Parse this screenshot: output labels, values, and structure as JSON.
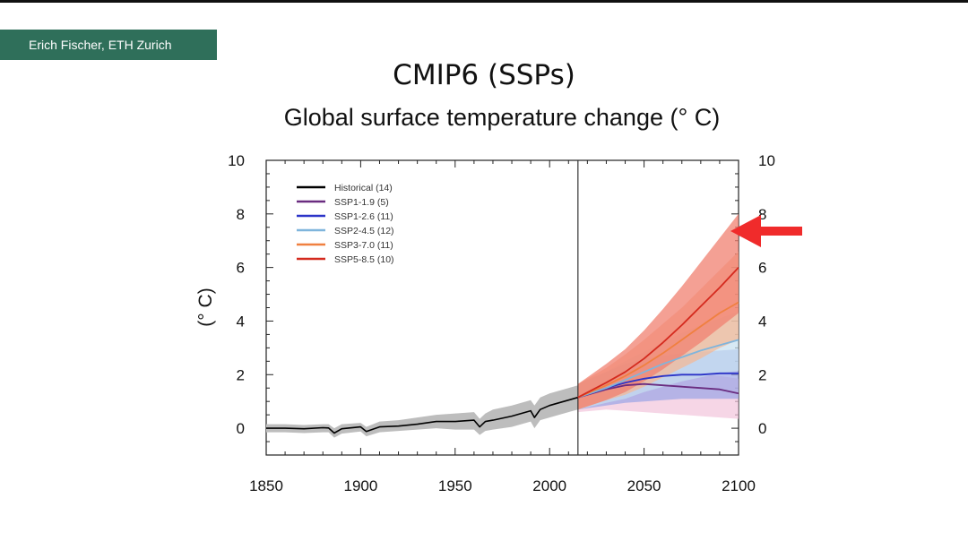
{
  "credit": "Erich Fischer, ETH Zurich",
  "title": "CMIP6 (SSPs)",
  "chart_data": {
    "type": "line",
    "title": "Global surface temperature change (° C)",
    "ylabel": "(° C)",
    "xlabel": "",
    "xlim": [
      1850,
      2100
    ],
    "ylim": [
      -1,
      10
    ],
    "x_ticks": [
      "1850",
      "1900",
      "1950",
      "2000",
      "2050",
      "2100"
    ],
    "y_ticks": [
      "0",
      "2",
      "4",
      "6",
      "8",
      "10"
    ],
    "divider_year": 2015,
    "legend_position": "top-left",
    "series": [
      {
        "name": "Historical (14)",
        "color": "#000000",
        "band": "#bdbdbd",
        "x": [
          1850,
          1860,
          1870,
          1880,
          1883,
          1886,
          1890,
          1900,
          1903,
          1910,
          1920,
          1930,
          1940,
          1950,
          1960,
          1963,
          1966,
          1970,
          1980,
          1990,
          1992,
          1995,
          2000,
          2005,
          2010,
          2015
        ],
        "y": [
          0.0,
          0.0,
          -0.02,
          0.02,
          0.01,
          -0.18,
          -0.02,
          0.05,
          -0.12,
          0.05,
          0.08,
          0.15,
          0.25,
          0.25,
          0.3,
          0.05,
          0.25,
          0.3,
          0.45,
          0.65,
          0.4,
          0.7,
          0.85,
          0.95,
          1.05,
          1.15
        ],
        "lo": [
          -0.15,
          -0.15,
          -0.18,
          -0.15,
          -0.15,
          -0.35,
          -0.2,
          -0.12,
          -0.3,
          -0.15,
          -0.1,
          -0.05,
          0.0,
          -0.05,
          -0.05,
          -0.25,
          -0.1,
          -0.05,
          0.05,
          0.25,
          0.0,
          0.3,
          0.4,
          0.5,
          0.6,
          0.7
        ],
        "hi": [
          0.15,
          0.15,
          0.12,
          0.15,
          0.15,
          0.0,
          0.15,
          0.2,
          0.05,
          0.25,
          0.3,
          0.4,
          0.5,
          0.55,
          0.6,
          0.35,
          0.55,
          0.7,
          0.85,
          1.05,
          0.85,
          1.15,
          1.3,
          1.4,
          1.5,
          1.6
        ]
      },
      {
        "name": "SSP1-1.9 (5)",
        "color": "#6a2c80",
        "band": "#f2c4dc",
        "x": [
          2015,
          2030,
          2040,
          2050,
          2060,
          2070,
          2080,
          2090,
          2100
        ],
        "y": [
          1.15,
          1.45,
          1.6,
          1.65,
          1.6,
          1.55,
          1.5,
          1.45,
          1.3
        ],
        "lo": [
          0.6,
          0.7,
          0.65,
          0.6,
          0.55,
          0.5,
          0.45,
          0.4,
          0.35
        ],
        "hi": [
          1.6,
          1.9,
          2.1,
          2.2,
          2.2,
          2.1,
          2.0,
          1.95,
          1.85
        ]
      },
      {
        "name": "SSP1-2.6 (11)",
        "color": "#2c34c8",
        "band": "#9aa4e6",
        "x": [
          2015,
          2030,
          2040,
          2050,
          2060,
          2070,
          2080,
          2090,
          2100
        ],
        "y": [
          1.15,
          1.5,
          1.7,
          1.85,
          1.95,
          2.0,
          2.0,
          2.05,
          2.05
        ],
        "lo": [
          0.7,
          0.85,
          0.95,
          1.0,
          1.05,
          1.1,
          1.1,
          1.1,
          1.1
        ],
        "hi": [
          1.65,
          2.1,
          2.4,
          2.6,
          2.7,
          2.8,
          2.85,
          2.9,
          2.95
        ]
      },
      {
        "name": "SSP2-4.5 (12)",
        "color": "#7fb5dc",
        "band": "#c6dff0",
        "x": [
          2015,
          2030,
          2040,
          2050,
          2060,
          2070,
          2080,
          2090,
          2100
        ],
        "y": [
          1.15,
          1.5,
          1.8,
          2.1,
          2.4,
          2.65,
          2.9,
          3.1,
          3.3
        ],
        "lo": [
          0.7,
          0.95,
          1.1,
          1.35,
          1.55,
          1.75,
          1.9,
          2.05,
          2.15
        ],
        "hi": [
          1.65,
          2.1,
          2.5,
          2.85,
          3.2,
          3.55,
          3.85,
          4.1,
          4.35
        ]
      },
      {
        "name": "SSP3-7.0 (11)",
        "color": "#f08040",
        "band": "#f6b792",
        "x": [
          2015,
          2030,
          2040,
          2050,
          2060,
          2070,
          2080,
          2090,
          2100
        ],
        "y": [
          1.15,
          1.6,
          1.95,
          2.35,
          2.8,
          3.3,
          3.8,
          4.3,
          4.7
        ],
        "lo": [
          0.7,
          1.05,
          1.25,
          1.55,
          1.9,
          2.25,
          2.6,
          3.0,
          3.3
        ],
        "hi": [
          1.65,
          2.25,
          2.75,
          3.3,
          3.9,
          4.5,
          5.2,
          5.9,
          6.6
        ]
      },
      {
        "name": "SSP5-8.5 (10)",
        "color": "#d42a1e",
        "band": "#f08070",
        "x": [
          2015,
          2030,
          2040,
          2050,
          2060,
          2070,
          2080,
          2090,
          2100
        ],
        "y": [
          1.15,
          1.7,
          2.1,
          2.6,
          3.2,
          3.85,
          4.55,
          5.25,
          6.0
        ],
        "lo": [
          0.7,
          1.05,
          1.35,
          1.75,
          2.2,
          2.7,
          3.2,
          3.75,
          4.3
        ],
        "hi": [
          1.65,
          2.4,
          2.95,
          3.65,
          4.45,
          5.3,
          6.2,
          7.1,
          8.0
        ]
      }
    ]
  },
  "annotation": {
    "arrow_color": "#f02b2b",
    "arrow_target_value": 7.5
  }
}
